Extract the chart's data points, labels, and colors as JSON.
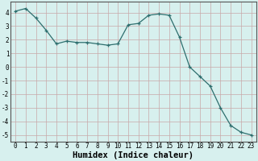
{
  "x": [
    0,
    1,
    2,
    3,
    4,
    5,
    6,
    7,
    8,
    9,
    10,
    11,
    12,
    13,
    14,
    15,
    16,
    17,
    18,
    19,
    20,
    21,
    22,
    23
  ],
  "y": [
    4.1,
    4.3,
    3.6,
    2.7,
    1.7,
    1.9,
    1.8,
    1.8,
    1.7,
    1.6,
    1.7,
    3.1,
    3.2,
    3.8,
    3.9,
    3.8,
    2.2,
    0.0,
    -0.7,
    -1.4,
    -3.0,
    -4.3,
    -4.8,
    -5.0
  ],
  "line_color": "#2d6e6e",
  "marker": "+",
  "background_color": "#d7f0ee",
  "plot_bg_color": "#d7f0ee",
  "grid_color": "#c8a8a8",
  "xlabel": "Humidex (Indice chaleur)",
  "ylim": [
    -5.5,
    4.8
  ],
  "xlim": [
    -0.5,
    23.5
  ],
  "yticks": [
    -5,
    -4,
    -3,
    -2,
    -1,
    0,
    1,
    2,
    3,
    4
  ],
  "xticks": [
    0,
    1,
    2,
    3,
    4,
    5,
    6,
    7,
    8,
    9,
    10,
    11,
    12,
    13,
    14,
    15,
    16,
    17,
    18,
    19,
    20,
    21,
    22,
    23
  ],
  "tick_label_fontsize": 5.5,
  "xlabel_fontsize": 7.5
}
